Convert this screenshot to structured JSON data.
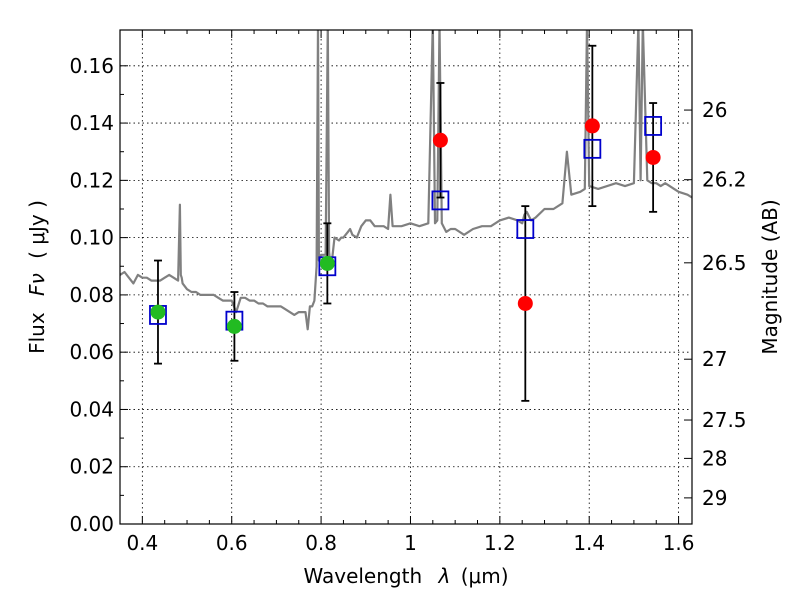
{
  "chart_data": {
    "type": "scatter",
    "title": "",
    "xlabel_main": "Wavelength",
    "xlabel_symbol": "λ",
    "xlabel_unit": "(μm)",
    "ylabel_main": "Flux",
    "ylabel_symbol": "Fν",
    "ylabel_unit": "( μJy )",
    "y2label": "Magnitude (AB)",
    "xlim": [
      0.35,
      1.63
    ],
    "ylim": [
      0.0,
      0.1725
    ],
    "grid": true,
    "x_ticks": [
      {
        "value": 0.4,
        "label": "0.4"
      },
      {
        "value": 0.6,
        "label": "0.6"
      },
      {
        "value": 0.8,
        "label": "0.8"
      },
      {
        "value": 1.0,
        "label": "1"
      },
      {
        "value": 1.2,
        "label": "1.2"
      },
      {
        "value": 1.4,
        "label": "1.4"
      },
      {
        "value": 1.6,
        "label": "1.6"
      }
    ],
    "y_ticks": [
      {
        "value": 0.0,
        "label": "0.00"
      },
      {
        "value": 0.02,
        "label": "0.02"
      },
      {
        "value": 0.04,
        "label": "0.04"
      },
      {
        "value": 0.06,
        "label": "0.06"
      },
      {
        "value": 0.08,
        "label": "0.08"
      },
      {
        "value": 0.1,
        "label": "0.10"
      },
      {
        "value": 0.12,
        "label": "0.12"
      },
      {
        "value": 0.14,
        "label": "0.14"
      },
      {
        "value": 0.16,
        "label": "0.16"
      }
    ],
    "y2_ticks": [
      {
        "mag": 26,
        "label": "26"
      },
      {
        "mag": 26.2,
        "label": "26.2"
      },
      {
        "mag": 26.5,
        "label": "26.5"
      },
      {
        "mag": 27,
        "label": "27"
      },
      {
        "mag": 27.5,
        "label": "27.5"
      },
      {
        "mag": 28,
        "label": "28"
      },
      {
        "mag": 29,
        "label": "29"
      }
    ],
    "colors": {
      "spectrum": "#808080",
      "model_box": "#0000cc",
      "obs_green": "#22bb22",
      "obs_red": "#ff0000",
      "errorbar": "#000000"
    },
    "series": [
      {
        "name": "model-spectrum",
        "type": "line",
        "x": [
          0.35,
          0.36,
          0.37,
          0.38,
          0.39,
          0.4,
          0.41,
          0.42,
          0.43,
          0.44,
          0.45,
          0.46,
          0.47,
          0.48,
          0.484,
          0.486,
          0.488,
          0.49,
          0.5,
          0.51,
          0.52,
          0.53,
          0.54,
          0.55,
          0.56,
          0.57,
          0.58,
          0.59,
          0.6,
          0.61,
          0.62,
          0.63,
          0.64,
          0.65,
          0.66,
          0.67,
          0.68,
          0.69,
          0.7,
          0.71,
          0.72,
          0.73,
          0.74,
          0.75,
          0.76,
          0.765,
          0.77,
          0.775,
          0.78,
          0.785,
          0.79,
          0.793,
          0.795,
          0.8,
          0.81,
          0.815,
          0.818,
          0.82,
          0.825,
          0.83,
          0.84,
          0.845,
          0.85,
          0.86,
          0.865,
          0.87,
          0.88,
          0.89,
          0.9,
          0.91,
          0.92,
          0.93,
          0.94,
          0.95,
          0.955,
          0.96,
          0.97,
          0.98,
          1.0,
          1.02,
          1.04,
          1.05,
          1.055,
          1.06,
          1.065,
          1.07,
          1.08,
          1.09,
          1.1,
          1.12,
          1.14,
          1.16,
          1.18,
          1.2,
          1.22,
          1.24,
          1.25,
          1.255,
          1.26,
          1.27,
          1.28,
          1.3,
          1.32,
          1.34,
          1.35,
          1.36,
          1.38,
          1.39,
          1.395,
          1.4,
          1.42,
          1.44,
          1.46,
          1.48,
          1.5,
          1.51,
          1.515,
          1.52,
          1.53,
          1.54,
          1.55,
          1.56,
          1.57,
          1.58,
          1.59,
          1.6,
          1.62,
          1.63
        ],
        "y": [
          0.087,
          0.088,
          0.086,
          0.084,
          0.087,
          0.086,
          0.086,
          0.085,
          0.085,
          0.085,
          0.086,
          0.087,
          0.086,
          0.085,
          0.1115,
          0.087,
          0.086,
          0.084,
          0.082,
          0.081,
          0.081,
          0.08,
          0.08,
          0.08,
          0.08,
          0.079,
          0.078,
          0.078,
          0.078,
          0.074,
          0.079,
          0.079,
          0.078,
          0.078,
          0.077,
          0.077,
          0.076,
          0.076,
          0.076,
          0.076,
          0.075,
          0.074,
          0.073,
          0.074,
          0.074,
          0.074,
          0.068,
          0.076,
          0.076,
          0.078,
          0.09,
          0.175,
          0.092,
          0.094,
          0.094,
          0.175,
          0.095,
          0.092,
          0.093,
          0.1,
          0.099,
          0.1,
          0.1,
          0.102,
          0.103,
          0.101,
          0.1,
          0.104,
          0.106,
          0.106,
          0.104,
          0.104,
          0.104,
          0.103,
          0.115,
          0.104,
          0.104,
          0.104,
          0.105,
          0.104,
          0.105,
          0.175,
          0.105,
          0.106,
          0.175,
          0.105,
          0.102,
          0.103,
          0.103,
          0.101,
          0.103,
          0.104,
          0.104,
          0.106,
          0.107,
          0.106,
          0.105,
          0.108,
          0.109,
          0.106,
          0.107,
          0.11,
          0.11,
          0.112,
          0.13,
          0.115,
          0.116,
          0.117,
          0.175,
          0.118,
          0.117,
          0.118,
          0.119,
          0.118,
          0.119,
          0.175,
          0.12,
          0.175,
          0.12,
          0.119,
          0.119,
          0.118,
          0.119,
          0.118,
          0.117,
          0.116,
          0.115,
          0.114
        ]
      },
      {
        "name": "model-photometry",
        "type": "scatter",
        "marker": "square",
        "x": [
          0.435,
          0.606,
          0.814,
          1.067,
          1.257,
          1.407,
          1.543
        ],
        "y": [
          0.073,
          0.071,
          0.09,
          0.113,
          0.103,
          0.131,
          0.139
        ]
      },
      {
        "name": "observed-optical",
        "type": "scatter",
        "marker": "circle",
        "color_key": "obs_green",
        "x": [
          0.435,
          0.606,
          0.814
        ],
        "y": [
          0.074,
          0.069,
          0.091
        ],
        "yerr": [
          0.018,
          0.012,
          0.014
        ]
      },
      {
        "name": "observed-nir",
        "type": "scatter",
        "marker": "circle",
        "color_key": "obs_red",
        "x": [
          1.067,
          1.257,
          1.407,
          1.543
        ],
        "y": [
          0.134,
          0.077,
          0.139,
          0.128
        ],
        "yerr": [
          0.02,
          0.034,
          0.028,
          0.019
        ]
      }
    ]
  }
}
